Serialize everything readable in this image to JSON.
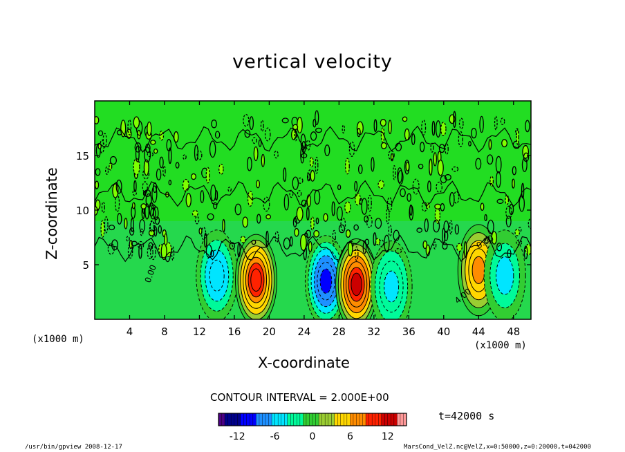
{
  "chart_data": {
    "type": "heatmap",
    "title": "vertical velocity",
    "xlabel": "X-coordinate",
    "ylabel": "Z-coordinate",
    "x_unit": "(x1000 m)",
    "y_unit": "(x1000 m)",
    "x_ticks": [
      "4",
      "8",
      "12",
      "16",
      "20",
      "24",
      "28",
      "32",
      "36",
      "40",
      "44",
      "48"
    ],
    "y_ticks": [
      "5",
      "10",
      "15"
    ],
    "xlim": [
      0,
      50
    ],
    "ylim": [
      0,
      20
    ],
    "contour_interval": "CONTOUR INTERVAL = 2.000E+00",
    "contour_labels": [
      "0.00",
      "0.00",
      "4.00"
    ],
    "time_label": "t=42000 s",
    "colorbar": {
      "tick_labels": [
        "-12",
        "-6",
        "0",
        "6",
        "12"
      ],
      "range": [
        -15,
        15
      ],
      "colors": [
        "#4b0082",
        "#00008b",
        "#0000ff",
        "#1e90ff",
        "#00e5ff",
        "#00fa9a",
        "#32cd32",
        "#9acd32",
        "#ffd700",
        "#ff8c00",
        "#ff2200",
        "#cc0000",
        "#ff9999"
      ]
    },
    "features": [
      {
        "x": 14,
        "z": 4,
        "w": -6
      },
      {
        "x": 18.5,
        "z": 3.6,
        "w": 11
      },
      {
        "x": 26.5,
        "z": 3.5,
        "w": -10
      },
      {
        "x": 30,
        "z": 3.2,
        "w": 12
      },
      {
        "x": 34,
        "z": 3.0,
        "w": -5
      },
      {
        "x": 44,
        "z": 4.5,
        "w": 7
      },
      {
        "x": 47,
        "z": 4,
        "w": -4
      }
    ]
  },
  "footer": {
    "left": "/usr/bin/gpview  2008-12-17",
    "right": "MarsCond_VelZ.nc@VelZ,x=0:50000,z=0:20000,t=042000"
  }
}
